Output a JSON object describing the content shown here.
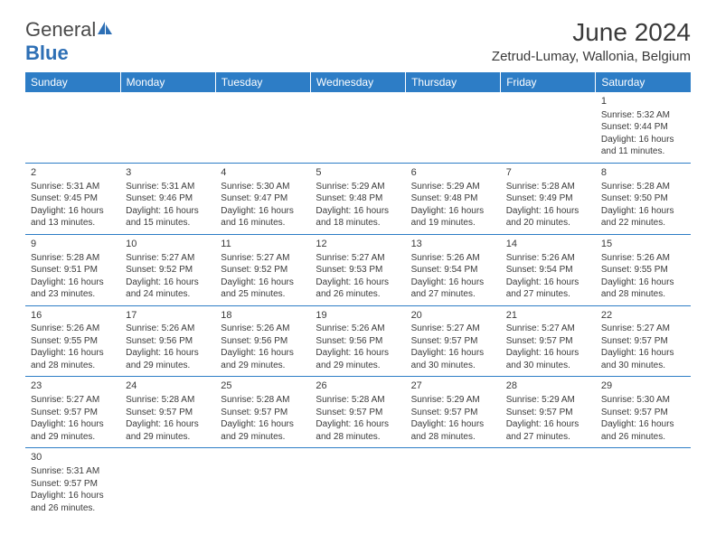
{
  "brand": {
    "part1": "General",
    "part2": "Blue"
  },
  "title": "June 2024",
  "location": "Zetrud-Lumay, Wallonia, Belgium",
  "colors": {
    "header_bg": "#2d7dc6",
    "header_text": "#ffffff",
    "text": "#3a3a3a",
    "border": "#2d7dc6",
    "logo_blue": "#2d6fb5"
  },
  "daynames": [
    "Sunday",
    "Monday",
    "Tuesday",
    "Wednesday",
    "Thursday",
    "Friday",
    "Saturday"
  ],
  "weeks": [
    [
      null,
      null,
      null,
      null,
      null,
      null,
      {
        "d": "1",
        "sr": "5:32 AM",
        "ss": "9:44 PM",
        "dl": "16 hours and 11 minutes."
      }
    ],
    [
      {
        "d": "2",
        "sr": "5:31 AM",
        "ss": "9:45 PM",
        "dl": "16 hours and 13 minutes."
      },
      {
        "d": "3",
        "sr": "5:31 AM",
        "ss": "9:46 PM",
        "dl": "16 hours and 15 minutes."
      },
      {
        "d": "4",
        "sr": "5:30 AM",
        "ss": "9:47 PM",
        "dl": "16 hours and 16 minutes."
      },
      {
        "d": "5",
        "sr": "5:29 AM",
        "ss": "9:48 PM",
        "dl": "16 hours and 18 minutes."
      },
      {
        "d": "6",
        "sr": "5:29 AM",
        "ss": "9:48 PM",
        "dl": "16 hours and 19 minutes."
      },
      {
        "d": "7",
        "sr": "5:28 AM",
        "ss": "9:49 PM",
        "dl": "16 hours and 20 minutes."
      },
      {
        "d": "8",
        "sr": "5:28 AM",
        "ss": "9:50 PM",
        "dl": "16 hours and 22 minutes."
      }
    ],
    [
      {
        "d": "9",
        "sr": "5:28 AM",
        "ss": "9:51 PM",
        "dl": "16 hours and 23 minutes."
      },
      {
        "d": "10",
        "sr": "5:27 AM",
        "ss": "9:52 PM",
        "dl": "16 hours and 24 minutes."
      },
      {
        "d": "11",
        "sr": "5:27 AM",
        "ss": "9:52 PM",
        "dl": "16 hours and 25 minutes."
      },
      {
        "d": "12",
        "sr": "5:27 AM",
        "ss": "9:53 PM",
        "dl": "16 hours and 26 minutes."
      },
      {
        "d": "13",
        "sr": "5:26 AM",
        "ss": "9:54 PM",
        "dl": "16 hours and 27 minutes."
      },
      {
        "d": "14",
        "sr": "5:26 AM",
        "ss": "9:54 PM",
        "dl": "16 hours and 27 minutes."
      },
      {
        "d": "15",
        "sr": "5:26 AM",
        "ss": "9:55 PM",
        "dl": "16 hours and 28 minutes."
      }
    ],
    [
      {
        "d": "16",
        "sr": "5:26 AM",
        "ss": "9:55 PM",
        "dl": "16 hours and 28 minutes."
      },
      {
        "d": "17",
        "sr": "5:26 AM",
        "ss": "9:56 PM",
        "dl": "16 hours and 29 minutes."
      },
      {
        "d": "18",
        "sr": "5:26 AM",
        "ss": "9:56 PM",
        "dl": "16 hours and 29 minutes."
      },
      {
        "d": "19",
        "sr": "5:26 AM",
        "ss": "9:56 PM",
        "dl": "16 hours and 29 minutes."
      },
      {
        "d": "20",
        "sr": "5:27 AM",
        "ss": "9:57 PM",
        "dl": "16 hours and 30 minutes."
      },
      {
        "d": "21",
        "sr": "5:27 AM",
        "ss": "9:57 PM",
        "dl": "16 hours and 30 minutes."
      },
      {
        "d": "22",
        "sr": "5:27 AM",
        "ss": "9:57 PM",
        "dl": "16 hours and 30 minutes."
      }
    ],
    [
      {
        "d": "23",
        "sr": "5:27 AM",
        "ss": "9:57 PM",
        "dl": "16 hours and 29 minutes."
      },
      {
        "d": "24",
        "sr": "5:28 AM",
        "ss": "9:57 PM",
        "dl": "16 hours and 29 minutes."
      },
      {
        "d": "25",
        "sr": "5:28 AM",
        "ss": "9:57 PM",
        "dl": "16 hours and 29 minutes."
      },
      {
        "d": "26",
        "sr": "5:28 AM",
        "ss": "9:57 PM",
        "dl": "16 hours and 28 minutes."
      },
      {
        "d": "27",
        "sr": "5:29 AM",
        "ss": "9:57 PM",
        "dl": "16 hours and 28 minutes."
      },
      {
        "d": "28",
        "sr": "5:29 AM",
        "ss": "9:57 PM",
        "dl": "16 hours and 27 minutes."
      },
      {
        "d": "29",
        "sr": "5:30 AM",
        "ss": "9:57 PM",
        "dl": "16 hours and 26 minutes."
      }
    ],
    [
      {
        "d": "30",
        "sr": "5:31 AM",
        "ss": "9:57 PM",
        "dl": "16 hours and 26 minutes."
      },
      null,
      null,
      null,
      null,
      null,
      null
    ]
  ],
  "labels": {
    "sunrise": "Sunrise:",
    "sunset": "Sunset:",
    "daylight": "Daylight:"
  }
}
